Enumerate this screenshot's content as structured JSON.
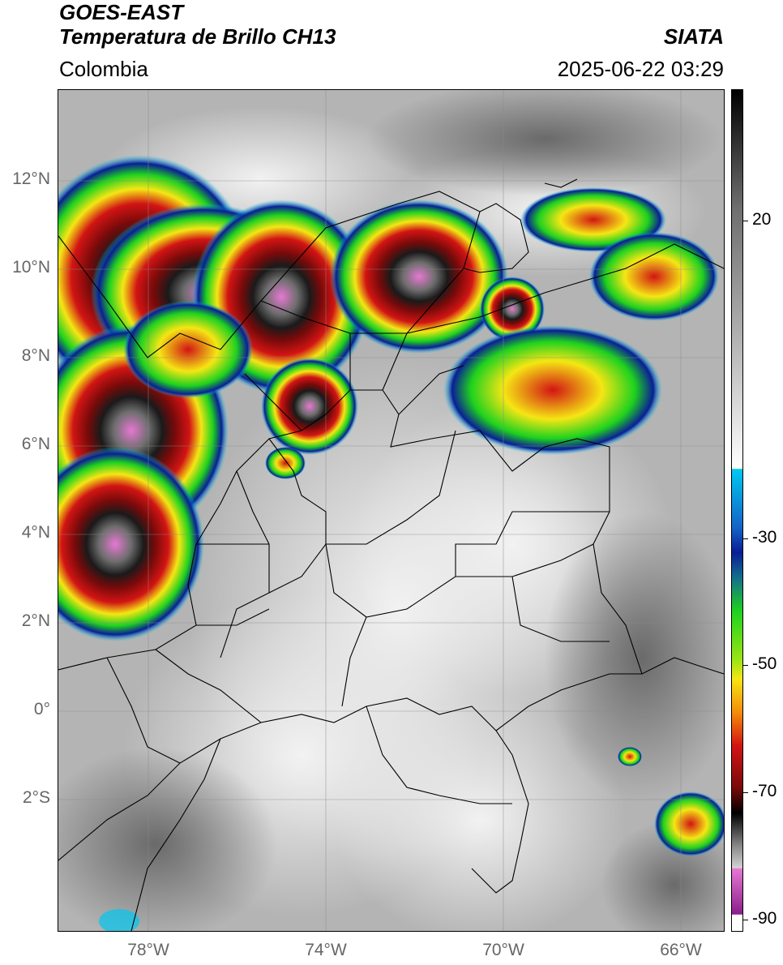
{
  "header": {
    "satellite": "GOES-EAST",
    "product": "Temperatura de Brillo CH13",
    "brand": "SIATA",
    "region": "Colombia",
    "timestamp": "2025-06-22 03:29"
  },
  "map": {
    "latitude_labels": [
      "12°N",
      "10°N",
      "8°N",
      "6°N",
      "4°N",
      "2°N",
      "0°",
      "2°S"
    ],
    "longitude_labels": [
      "78°W",
      "74°W",
      "70°W",
      "66°W"
    ]
  },
  "colorbar": {
    "tick_labels": [
      "20",
      "-30",
      "-50",
      "-70",
      "-90"
    ],
    "colors": {
      "white": "#ffffff",
      "cyan": "#00c8f0",
      "dark_blue": "#0a1e96",
      "green": "#1ed21e",
      "yellow": "#f5e614",
      "orange": "#f58c0a",
      "red": "#d21414",
      "dark_red": "#780a0a",
      "black": "#000000",
      "pink": "#e678d2",
      "purple": "#8c1e8c"
    }
  }
}
